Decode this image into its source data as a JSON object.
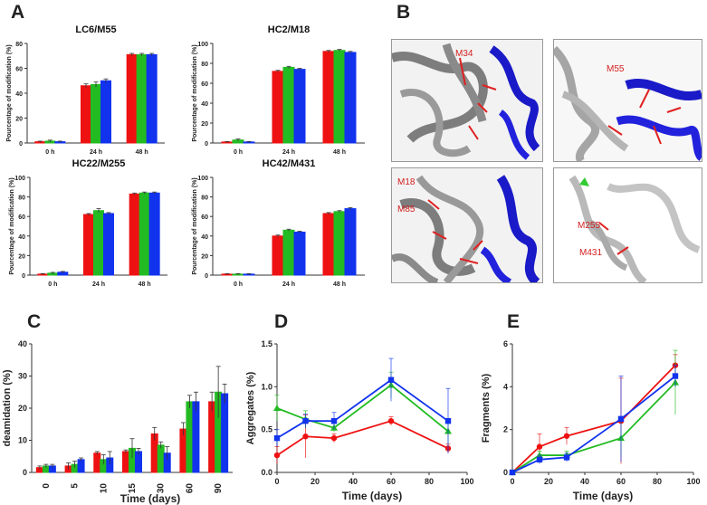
{
  "panels": {
    "A": "A",
    "B": "B",
    "C": "C",
    "D": "D",
    "E": "E"
  },
  "colors": {
    "red": "#ee1111",
    "green": "#22bb22",
    "blue": "#1133ee"
  },
  "chart_data": [
    {
      "id": "A1",
      "type": "bar",
      "title": "LC6/M55",
      "ylabel": "Pourcentage of modification (%)",
      "categories": [
        "0 h",
        "24 h",
        "48 h"
      ],
      "ylim": [
        0,
        80
      ],
      "yticks": [
        0,
        20,
        40,
        60,
        80
      ],
      "series": [
        {
          "name": "red",
          "values": [
            1,
            46,
            71
          ],
          "err": [
            0.5,
            1.5,
            1
          ]
        },
        {
          "name": "green",
          "values": [
            1.5,
            47,
            71
          ],
          "err": [
            0.8,
            2,
            1
          ]
        },
        {
          "name": "blue",
          "values": [
            1,
            50,
            71
          ],
          "err": [
            0.5,
            1.5,
            1
          ]
        }
      ]
    },
    {
      "id": "A2",
      "type": "bar",
      "title": "HC2/M18",
      "ylabel": "Pourcentage of modification (%)",
      "categories": [
        "0 h",
        "24 h",
        "48 h"
      ],
      "ylim": [
        0,
        100
      ],
      "yticks": [
        0,
        20,
        40,
        60,
        80,
        100
      ],
      "series": [
        {
          "name": "red",
          "values": [
            1,
            72,
            92
          ],
          "err": [
            0.5,
            1,
            1
          ]
        },
        {
          "name": "green",
          "values": [
            3,
            76,
            93
          ],
          "err": [
            1,
            1,
            1
          ]
        },
        {
          "name": "blue",
          "values": [
            1,
            74,
            91
          ],
          "err": [
            0.5,
            1,
            1
          ]
        }
      ]
    },
    {
      "id": "A3",
      "type": "bar",
      "title": "HC22/M255",
      "ylabel": "Pourcentage of modification (%)",
      "categories": [
        "0 h",
        "24 h",
        "48 h"
      ],
      "ylim": [
        0,
        100
      ],
      "yticks": [
        0,
        20,
        40,
        60,
        80,
        100
      ],
      "series": [
        {
          "name": "red",
          "values": [
            1,
            62,
            83
          ],
          "err": [
            0.5,
            1,
            1
          ]
        },
        {
          "name": "green",
          "values": [
            2,
            66,
            84
          ],
          "err": [
            0.8,
            2,
            1
          ]
        },
        {
          "name": "blue",
          "values": [
            3,
            63,
            84
          ],
          "err": [
            0.8,
            1,
            1
          ]
        }
      ]
    },
    {
      "id": "A4",
      "type": "bar",
      "title": "HC42/M431",
      "ylabel": "Pourcentage of modification (%)",
      "categories": [
        "0 h",
        "24 h",
        "48 h"
      ],
      "ylim": [
        0,
        100
      ],
      "yticks": [
        0,
        20,
        40,
        60,
        80,
        100
      ],
      "series": [
        {
          "name": "red",
          "values": [
            1,
            40,
            63
          ],
          "err": [
            0.5,
            1,
            1
          ]
        },
        {
          "name": "green",
          "values": [
            1,
            46,
            65
          ],
          "err": [
            0.5,
            1,
            1
          ]
        },
        {
          "name": "blue",
          "values": [
            1,
            44,
            68
          ],
          "err": [
            0.5,
            1,
            1
          ]
        }
      ]
    },
    {
      "id": "C",
      "type": "bar",
      "xlabel": "Time (days)",
      "ylabel": "deamidation (%)",
      "categories": [
        "0",
        "5",
        "10",
        "15",
        "30",
        "60",
        "90"
      ],
      "ylim": [
        0,
        40
      ],
      "yticks": [
        0,
        10,
        20,
        30,
        40
      ],
      "series": [
        {
          "name": "red",
          "values": [
            1.5,
            2,
            6,
            6.5,
            12,
            13.5,
            22
          ],
          "err": [
            0.5,
            1,
            0.5,
            0.5,
            2,
            2,
            3
          ]
        },
        {
          "name": "green",
          "values": [
            2,
            2.5,
            4,
            7.5,
            8.5,
            22,
            25
          ],
          "err": [
            0.5,
            1,
            1.5,
            3,
            1,
            2,
            8
          ]
        },
        {
          "name": "blue",
          "values": [
            2,
            4,
            4.5,
            6.5,
            6,
            22,
            24.5
          ],
          "err": [
            0.5,
            0.5,
            2,
            1,
            2,
            3,
            3
          ]
        }
      ]
    },
    {
      "id": "D",
      "type": "line",
      "xlabel": "Time (days)",
      "ylabel": "Aggregates (%)",
      "xlim": [
        0,
        100
      ],
      "xticks": [
        0,
        20,
        40,
        60,
        80,
        100
      ],
      "ylim": [
        0,
        1.5
      ],
      "yticks": [
        "0.0",
        "0.5",
        "1.0",
        "1.5"
      ],
      "x": [
        0,
        15,
        30,
        60,
        90
      ],
      "series": [
        {
          "name": "red",
          "marker": "circle",
          "values": [
            0.2,
            0.42,
            0.4,
            0.6,
            0.28
          ],
          "err": [
            0.1,
            0.25,
            0.05,
            0.05,
            0.05
          ]
        },
        {
          "name": "green",
          "marker": "triangle",
          "values": [
            0.75,
            0.62,
            0.52,
            1.02,
            0.48
          ],
          "err": [
            0.15,
            0.1,
            0.05,
            0.15,
            0.15
          ]
        },
        {
          "name": "blue",
          "marker": "square",
          "values": [
            0.4,
            0.6,
            0.6,
            1.08,
            0.6
          ],
          "err": [
            0.1,
            0.08,
            0.1,
            0.25,
            0.38
          ]
        }
      ]
    },
    {
      "id": "E",
      "type": "line",
      "xlabel": "Time (days)",
      "ylabel": "Fragments (%)",
      "xlim": [
        0,
        100
      ],
      "xticks": [
        0,
        20,
        40,
        60,
        80,
        100
      ],
      "ylim": [
        0,
        6
      ],
      "yticks": [
        0,
        2,
        4,
        6
      ],
      "x": [
        0,
        15,
        30,
        60,
        90
      ],
      "series": [
        {
          "name": "red",
          "marker": "circle",
          "values": [
            0,
            1.2,
            1.7,
            2.4,
            5.0
          ],
          "err": [
            0.05,
            0.6,
            0.4,
            2,
            0.5
          ]
        },
        {
          "name": "green",
          "marker": "triangle",
          "values": [
            0,
            0.8,
            0.8,
            1.6,
            4.2
          ],
          "err": [
            0.05,
            0.2,
            0.2,
            0.8,
            1.5
          ]
        },
        {
          "name": "blue",
          "marker": "square",
          "values": [
            0,
            0.6,
            0.7,
            2.5,
            4.5
          ],
          "err": [
            0.05,
            0.2,
            0.2,
            2,
            0.5
          ]
        }
      ]
    }
  ],
  "structures": {
    "b1": [
      "M34"
    ],
    "b2": [
      "M55"
    ],
    "b3": [
      "M18",
      "M85"
    ],
    "b4": [
      "M255",
      "M431"
    ]
  }
}
